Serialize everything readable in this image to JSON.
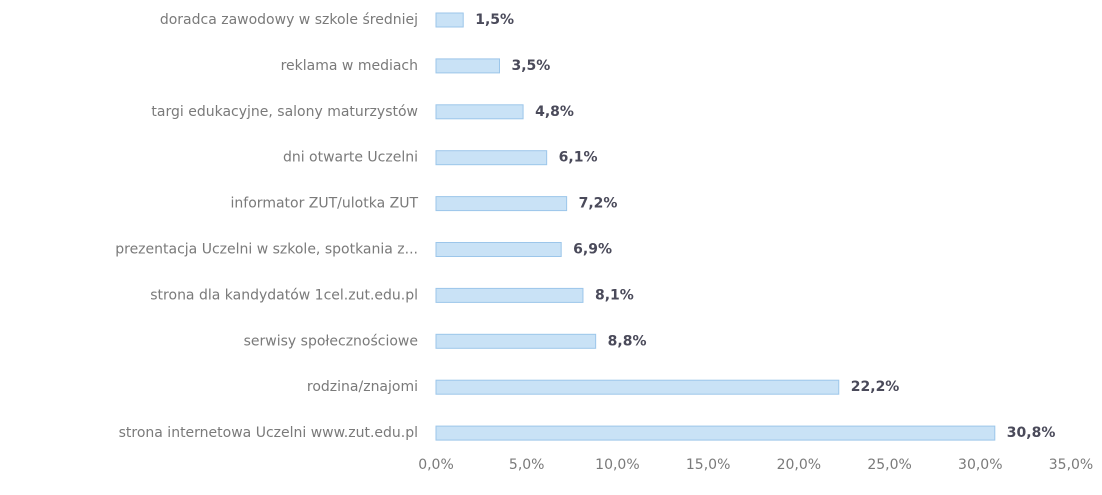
{
  "chart_data": {
    "type": "bar",
    "orientation": "horizontal",
    "categories": [
      "doradca zawodowy w szkole średniej",
      "reklama w mediach",
      "targi edukacyjne, salony maturzystów",
      "dni otwarte Uczelni",
      "informator ZUT/ulotka ZUT",
      "prezentacja Uczelni w szkole,  spotkania z...",
      "strona dla kandydatów 1cel.zut.edu.pl",
      "serwisy społecznościowe",
      "rodzina/znajomi",
      "strona internetowa Uczelni www.zut.edu.pl"
    ],
    "values": [
      1.5,
      3.5,
      4.8,
      6.1,
      7.2,
      6.9,
      8.1,
      8.8,
      22.2,
      30.8
    ],
    "value_labels": [
      "1,5%",
      "3,5%",
      "4,8%",
      "6,1%",
      "7,2%",
      "6,9%",
      "8,1%",
      "8,8%",
      "22,2%",
      "30,8%"
    ],
    "color": "#c9e2f6",
    "xlim": [
      0,
      35
    ],
    "xticks": [
      {
        "value": 0,
        "label": "0,0%"
      },
      {
        "value": 5,
        "label": "5,0%"
      },
      {
        "value": 10,
        "label": "10,0%"
      },
      {
        "value": 15,
        "label": "15,0%"
      },
      {
        "value": 20,
        "label": "20,0%"
      },
      {
        "value": 25,
        "label": "25,0%"
      },
      {
        "value": 30,
        "label": "30,0%"
      },
      {
        "value": 35,
        "label": "35,0%"
      }
    ],
    "grid": false
  }
}
